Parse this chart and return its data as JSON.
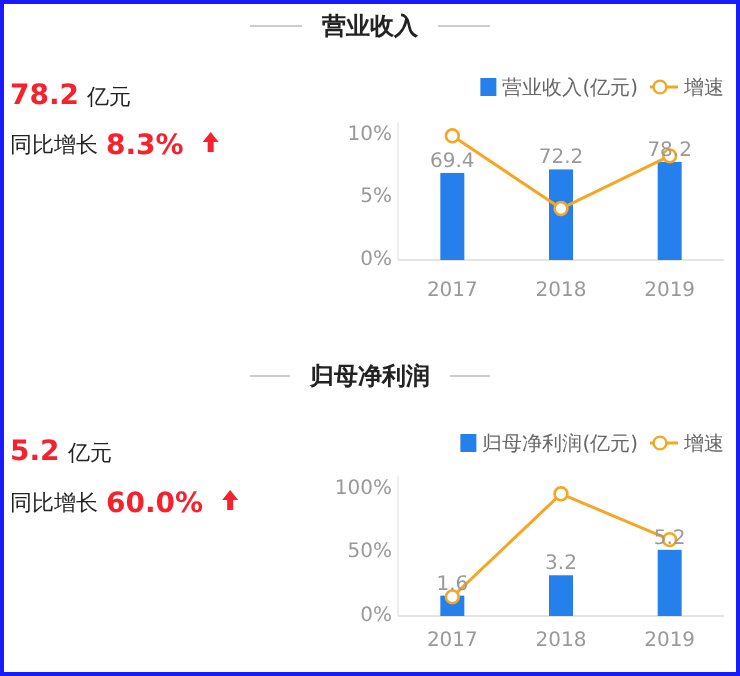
{
  "chart_data": [
    {
      "type": "bar",
      "title": "营业收入",
      "categories": [
        "2017",
        "2018",
        "2019"
      ],
      "annotations": [
        "78.2",
        "亿元",
        "同比增长",
        "8.3%"
      ],
      "series": [
        {
          "name": "营业收入(亿元)",
          "axis": "y2",
          "color": "#2680eb",
          "values": [
            69.4,
            72.2,
            78.2
          ],
          "value_labels": [
            "69.4",
            "72.2",
            "78.2"
          ]
        },
        {
          "name": "增速",
          "type": "line",
          "color": "#f5a623",
          "values": [
            9.9,
            4.1,
            8.3
          ],
          "marker": "circle"
        }
      ],
      "ylim": [
        0,
        11
      ],
      "yticks": [
        {
          "value": 0,
          "label": "0%"
        },
        {
          "value": 5,
          "label": "5%"
        },
        {
          "value": 10,
          "label": "10%"
        }
      ],
      "y2lim": [
        0,
        110
      ],
      "legend": "top right"
    },
    {
      "type": "bar",
      "title": "归母净利润",
      "categories": [
        "2017",
        "2018",
        "2019"
      ],
      "annotations": [
        "5.2",
        "亿元",
        "同比增长",
        "60.0%"
      ],
      "series": [
        {
          "name": "归母净利润(亿元)",
          "axis": "y2",
          "color": "#2680eb",
          "values": [
            1.6,
            3.2,
            5.2
          ],
          "value_labels": [
            "1.6",
            "3.2",
            "5.2"
          ]
        },
        {
          "name": "增速",
          "type": "line",
          "color": "#f5a623",
          "values": [
            15,
            96,
            60
          ],
          "marker": "circle"
        }
      ],
      "ylim": [
        0,
        110
      ],
      "yticks": [
        {
          "value": 0,
          "label": "0%"
        },
        {
          "value": 50,
          "label": "50%"
        },
        {
          "value": 100,
          "label": "100%"
        }
      ],
      "y2lim": [
        0,
        11
      ],
      "legend": "top right"
    }
  ]
}
